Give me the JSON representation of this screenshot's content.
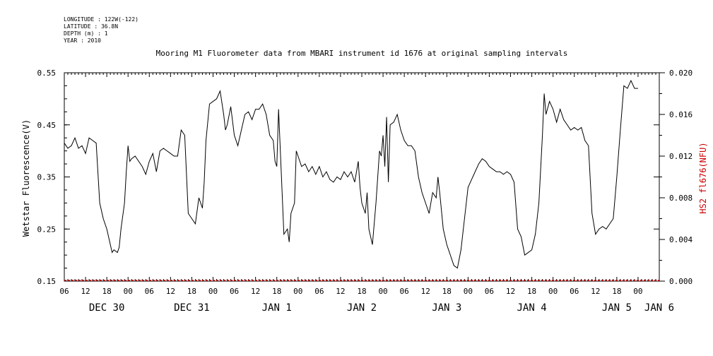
{
  "metadata": {
    "longitude": "LONGITUDE : 122W(-122)",
    "latitude": "LATITUDE : 36.8N",
    "depth": "DEPTH (m) : 1",
    "year": "YEAR : 2010"
  },
  "colors": {
    "primary": "#000000",
    "secondary": "#cc0000"
  },
  "chart_data": {
    "type": "line",
    "title": "Mooring M1 Fluorometer data from MBARI instrument id 1676 at original sampling intervals",
    "ylabel_left": "Wetstar Fluorescence(V)",
    "ylabel_right": "HS2 fl676(NFU)",
    "ylim_left": [
      0.15,
      0.55
    ],
    "ylim_right": [
      0.0,
      0.02
    ],
    "yticks_left": [
      "0.55",
      "0.45",
      "0.35",
      "0.25",
      "0.15"
    ],
    "yticks_right": [
      "0.020",
      "0.016",
      "0.012",
      "0.008",
      "0.004",
      "0.000"
    ],
    "xlim_hours": [
      0,
      168
    ],
    "hour_tick_labels": [
      "06",
      "12",
      "18",
      "00",
      "06",
      "12",
      "18",
      "00",
      "06",
      "12",
      "18",
      "00",
      "06",
      "12",
      "18",
      "00",
      "06",
      "12",
      "18",
      "00",
      "06",
      "12",
      "18",
      "00",
      "06",
      "12",
      "18",
      "00"
    ],
    "day_labels": [
      {
        "label": "DEC 30",
        "hour": 12
      },
      {
        "label": "DEC 31",
        "hour": 36
      },
      {
        "label": "JAN  1",
        "hour": 60
      },
      {
        "label": "JAN  2",
        "hour": 84
      },
      {
        "label": "JAN  3",
        "hour": 108
      },
      {
        "label": "JAN  4",
        "hour": 132
      },
      {
        "label": "JAN  5",
        "hour": 156
      },
      {
        "label": "JAN  6",
        "hour": 168
      }
    ],
    "series": [
      {
        "name": "Wetstar Fluorescence(V)",
        "axis": "left",
        "points": [
          [
            0,
            0.415
          ],
          [
            1,
            0.405
          ],
          [
            2,
            0.41
          ],
          [
            3,
            0.425
          ],
          [
            4,
            0.405
          ],
          [
            5,
            0.41
          ],
          [
            6,
            0.395
          ],
          [
            7,
            0.425
          ],
          [
            8,
            0.42
          ],
          [
            9,
            0.415
          ],
          [
            10,
            0.3
          ],
          [
            11,
            0.27
          ],
          [
            12,
            0.25
          ],
          [
            13,
            0.22
          ],
          [
            13.5,
            0.205
          ],
          [
            14,
            0.21
          ],
          [
            15,
            0.205
          ],
          [
            15.5,
            0.215
          ],
          [
            16,
            0.25
          ],
          [
            17,
            0.3
          ],
          [
            17.5,
            0.36
          ],
          [
            18,
            0.41
          ],
          [
            18.5,
            0.38
          ],
          [
            19,
            0.385
          ],
          [
            20,
            0.39
          ],
          [
            21,
            0.38
          ],
          [
            22,
            0.37
          ],
          [
            23,
            0.355
          ],
          [
            24,
            0.38
          ],
          [
            25,
            0.395
          ],
          [
            26,
            0.36
          ],
          [
            27,
            0.4
          ],
          [
            28,
            0.405
          ],
          [
            29,
            0.4
          ],
          [
            30,
            0.395
          ],
          [
            31,
            0.39
          ],
          [
            32,
            0.39
          ],
          [
            33,
            0.44
          ],
          [
            34,
            0.43
          ],
          [
            35,
            0.28
          ],
          [
            36,
            0.27
          ],
          [
            37,
            0.26
          ],
          [
            38,
            0.31
          ],
          [
            39,
            0.29
          ],
          [
            39.5,
            0.34
          ],
          [
            40,
            0.42
          ],
          [
            41,
            0.49
          ],
          [
            42,
            0.495
          ],
          [
            43,
            0.5
          ],
          [
            44,
            0.515
          ],
          [
            45,
            0.47
          ],
          [
            45.5,
            0.44
          ],
          [
            46,
            0.45
          ],
          [
            47,
            0.485
          ],
          [
            48,
            0.43
          ],
          [
            49,
            0.41
          ],
          [
            50,
            0.44
          ],
          [
            51,
            0.47
          ],
          [
            52,
            0.475
          ],
          [
            53,
            0.46
          ],
          [
            54,
            0.48
          ],
          [
            55,
            0.48
          ],
          [
            56,
            0.49
          ],
          [
            57,
            0.47
          ],
          [
            58,
            0.43
          ],
          [
            59,
            0.42
          ],
          [
            59.5,
            0.38
          ],
          [
            60,
            0.37
          ],
          [
            60.5,
            0.48
          ],
          [
            61,
            0.4
          ],
          [
            62,
            0.24
          ],
          [
            63,
            0.25
          ],
          [
            63.5,
            0.225
          ],
          [
            64,
            0.28
          ],
          [
            65,
            0.3
          ],
          [
            65.5,
            0.4
          ],
          [
            66,
            0.39
          ],
          [
            67,
            0.37
          ],
          [
            68,
            0.375
          ],
          [
            69,
            0.36
          ],
          [
            70,
            0.37
          ],
          [
            71,
            0.355
          ],
          [
            72,
            0.37
          ],
          [
            73,
            0.35
          ],
          [
            74,
            0.36
          ],
          [
            75,
            0.345
          ],
          [
            76,
            0.34
          ],
          [
            77,
            0.35
          ],
          [
            78,
            0.345
          ],
          [
            79,
            0.36
          ],
          [
            80,
            0.35
          ],
          [
            81,
            0.36
          ],
          [
            82,
            0.34
          ],
          [
            83,
            0.38
          ],
          [
            83.5,
            0.33
          ],
          [
            84,
            0.3
          ],
          [
            85,
            0.28
          ],
          [
            85.5,
            0.32
          ],
          [
            86,
            0.25
          ],
          [
            87,
            0.22
          ],
          [
            88,
            0.3
          ],
          [
            89,
            0.4
          ],
          [
            89.5,
            0.39
          ],
          [
            90,
            0.43
          ],
          [
            90.5,
            0.37
          ],
          [
            91,
            0.465
          ],
          [
            91.5,
            0.34
          ],
          [
            92,
            0.45
          ],
          [
            93,
            0.455
          ],
          [
            94,
            0.47
          ],
          [
            95,
            0.44
          ],
          [
            96,
            0.42
          ],
          [
            97,
            0.41
          ],
          [
            98,
            0.41
          ],
          [
            99,
            0.4
          ],
          [
            100,
            0.35
          ],
          [
            101,
            0.32
          ],
          [
            102,
            0.3
          ],
          [
            103,
            0.28
          ],
          [
            104,
            0.32
          ],
          [
            105,
            0.31
          ],
          [
            105.5,
            0.35
          ],
          [
            106,
            0.32
          ],
          [
            107,
            0.25
          ],
          [
            108,
            0.22
          ],
          [
            109,
            0.2
          ],
          [
            110,
            0.18
          ],
          [
            111,
            0.175
          ],
          [
            112,
            0.21
          ],
          [
            113,
            0.27
          ],
          [
            114,
            0.33
          ],
          [
            115,
            0.345
          ],
          [
            116,
            0.36
          ],
          [
            117,
            0.375
          ],
          [
            118,
            0.385
          ],
          [
            119,
            0.38
          ],
          [
            120,
            0.37
          ],
          [
            121,
            0.365
          ],
          [
            122,
            0.36
          ],
          [
            123,
            0.36
          ],
          [
            124,
            0.355
          ],
          [
            125,
            0.36
          ],
          [
            126,
            0.355
          ],
          [
            127,
            0.34
          ],
          [
            128,
            0.25
          ],
          [
            129,
            0.235
          ],
          [
            130,
            0.2
          ],
          [
            131,
            0.205
          ],
          [
            132,
            0.21
          ],
          [
            133,
            0.24
          ],
          [
            134,
            0.3
          ],
          [
            135,
            0.43
          ],
          [
            135.5,
            0.51
          ],
          [
            136,
            0.47
          ],
          [
            137,
            0.495
          ],
          [
            138,
            0.48
          ],
          [
            139,
            0.455
          ],
          [
            140,
            0.48
          ],
          [
            141,
            0.46
          ],
          [
            142,
            0.45
          ],
          [
            143,
            0.44
          ],
          [
            144,
            0.445
          ],
          [
            145,
            0.44
          ],
          [
            146,
            0.445
          ],
          [
            147,
            0.42
          ],
          [
            148,
            0.41
          ],
          [
            149,
            0.28
          ],
          [
            150,
            0.24
          ],
          [
            151,
            0.25
          ],
          [
            152,
            0.255
          ],
          [
            153,
            0.25
          ],
          [
            154,
            0.26
          ],
          [
            155,
            0.27
          ],
          [
            156,
            0.35
          ],
          [
            157,
            0.44
          ],
          [
            158,
            0.525
          ],
          [
            159,
            0.52
          ],
          [
            160,
            0.535
          ],
          [
            161,
            0.52
          ],
          [
            162,
            0.52
          ]
        ]
      },
      {
        "name": "HS2 fl676(NFU)",
        "axis": "right",
        "constant_value": 0.0
      }
    ]
  }
}
